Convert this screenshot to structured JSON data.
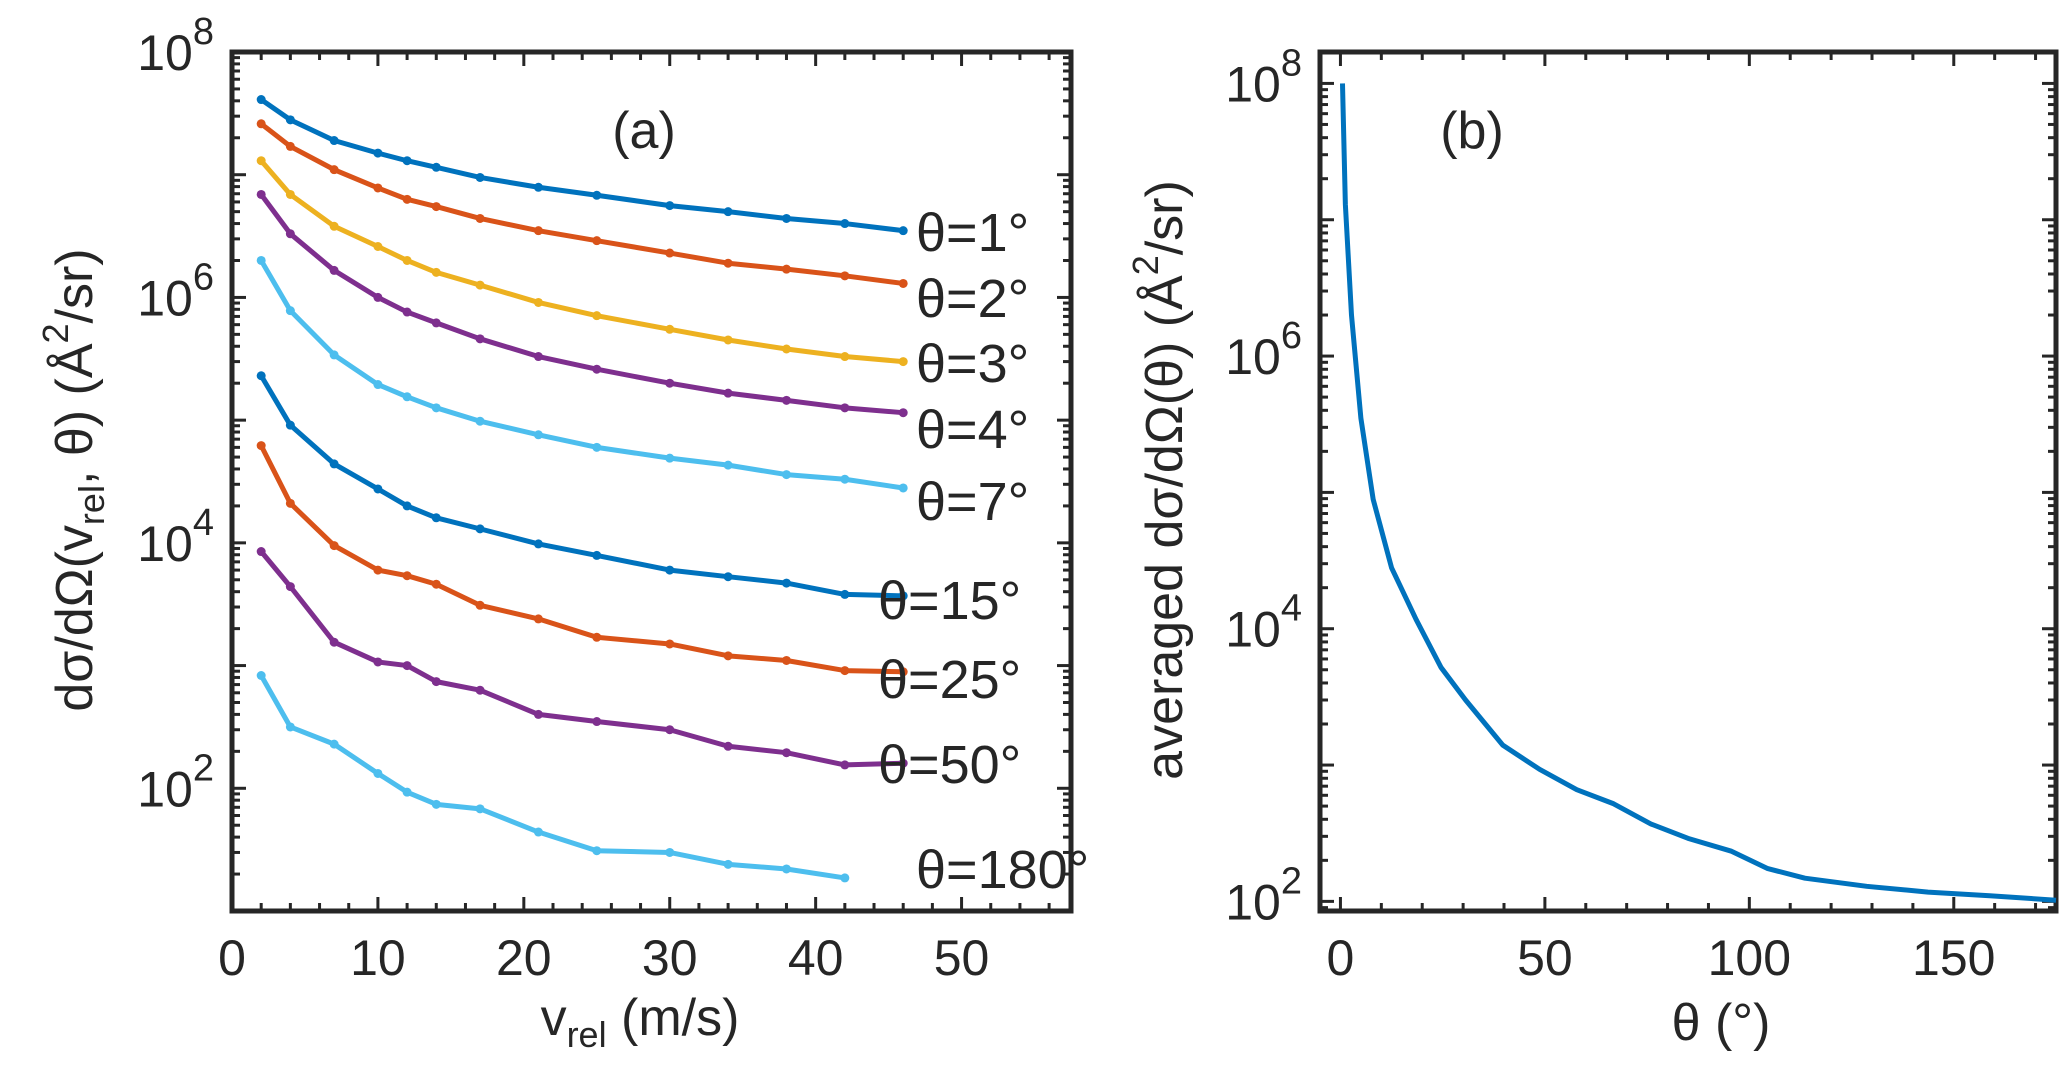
{
  "colors": {
    "c1": "#0072BD",
    "c2": "#D95319",
    "c3": "#EDB120",
    "c4": "#7E2F8E",
    "c5": "#4DBEEE",
    "axis": "#262626"
  },
  "chart_data": [
    {
      "type": "line",
      "panel_label": "(a)",
      "xlabel": {
        "main": "v",
        "sub": "rel",
        "rest": " (m/s)"
      },
      "ylabel": {
        "a": "dσ/dΩ(v",
        "sub": "rel",
        "b": ", θ)  (Å",
        "sup": "2",
        "c": "/sr)"
      },
      "xlim": [
        0,
        57.5
      ],
      "ylim": [
        10,
        100000000
      ],
      "yscale": "log",
      "xticks": [
        0,
        10,
        20,
        30,
        40,
        50
      ],
      "xtick_labels": [
        "0",
        "10",
        "20",
        "30",
        "40",
        "50"
      ],
      "yticks": [
        100,
        10000,
        1000000,
        100000000
      ],
      "ytick_labels": [
        {
          "base": "10",
          "exp": "2"
        },
        {
          "base": "10",
          "exp": "4"
        },
        {
          "base": "10",
          "exp": "6"
        },
        {
          "base": "10",
          "exp": "8"
        }
      ],
      "grid": false,
      "x": [
        2,
        4,
        7,
        10,
        12,
        14,
        17,
        21,
        25,
        30,
        34,
        38,
        42,
        46
      ],
      "series": [
        {
          "name": "θ=1°",
          "color": "#0072BD",
          "values": [
            41000000,
            28000000,
            19000000,
            15000000,
            13000000,
            11500000,
            9500000,
            7900000,
            6800000,
            5600000,
            5000000,
            4400000,
            4000000,
            3500000
          ]
        },
        {
          "name": "θ=2°",
          "color": "#D95319",
          "values": [
            26000000,
            17000000,
            11000000,
            7800000,
            6300000,
            5500000,
            4400000,
            3500000,
            2900000,
            2300000,
            1900000,
            1700000,
            1500000,
            1300000
          ]
        },
        {
          "name": "θ=3°",
          "color": "#EDB120",
          "values": [
            13000000,
            6900000,
            3800000,
            2600000,
            2000000,
            1600000,
            1260000,
            910000,
            710000,
            550000,
            450000,
            380000,
            330000,
            300000
          ]
        },
        {
          "name": "θ=4°",
          "color": "#7E2F8E",
          "values": [
            6900000,
            3300000,
            1660000,
            1000000,
            760000,
            620000,
            460000,
            330000,
            260000,
            200000,
            166000,
            145000,
            126000,
            115000
          ]
        },
        {
          "name": "θ=7°",
          "color": "#4DBEEE",
          "values": [
            2000000,
            780000,
            340000,
            195000,
            155000,
            126000,
            98000,
            76000,
            60000,
            49000,
            43000,
            36000,
            33000,
            28000
          ]
        },
        {
          "name": "θ=15°",
          "color": "#0072BD",
          "values": [
            230000,
            91000,
            44000,
            27500,
            20000,
            16000,
            13000,
            9800,
            7900,
            6000,
            5300,
            4700,
            3800,
            3700
          ]
        },
        {
          "name": "θ=25°",
          "color": "#D95319",
          "values": [
            62000,
            21000,
            9500,
            6000,
            5400,
            4600,
            3100,
            2400,
            1700,
            1500,
            1200,
            1100,
            910,
            890
          ]
        },
        {
          "name": "θ=50°",
          "color": "#7E2F8E",
          "values": [
            8500,
            4400,
            1550,
            1070,
            1000,
            740,
            630,
            400,
            350,
            300,
            220,
            195,
            155,
            160
          ]
        },
        {
          "name": "θ=180°",
          "color": "#4DBEEE",
          "values": [
            830,
            316,
            229,
            132,
            93,
            74,
            68,
            44,
            31,
            30,
            24,
            22,
            18.6,
            null
          ]
        }
      ]
    },
    {
      "type": "line",
      "panel_label": "(b)",
      "xlabel": {
        "main": "θ (°)"
      },
      "ylabel": {
        "a": "averaged  dσ/dΩ(θ)  (Å",
        "sup": "2",
        "c": "/sr)"
      },
      "xlim": [
        -5,
        175
      ],
      "ylim": [
        85,
        170000000
      ],
      "yscale": "log",
      "xticks": [
        0,
        50,
        100,
        150
      ],
      "xtick_labels": [
        "0",
        "50",
        "100",
        "150"
      ],
      "yticks": [
        100,
        10000,
        1000000,
        100000000
      ],
      "ytick_labels": [
        {
          "base": "10",
          "exp": "2"
        },
        {
          "base": "10",
          "exp": "4"
        },
        {
          "base": "10",
          "exp": "6"
        },
        {
          "base": "10",
          "exp": "8"
        }
      ],
      "grid": false,
      "series": [
        {
          "color": "#0072BD",
          "x": [
            0.5,
            1.2,
            2.7,
            5,
            8,
            12.5,
            18.5,
            24.6,
            30.6,
            39.7,
            48.7,
            57.8,
            66.8,
            75.9,
            85,
            95.5,
            104.5,
            113.6,
            128.7,
            143.7,
            158.8,
            175
          ],
          "values": [
            100000000,
            13000000,
            2000000,
            350000,
            89000,
            28000,
            11700,
            5200,
            3000,
            1400,
            930,
            660,
            520,
            370,
            290,
            234,
            174,
            148,
            129,
            117,
            110,
            102
          ]
        }
      ]
    }
  ]
}
